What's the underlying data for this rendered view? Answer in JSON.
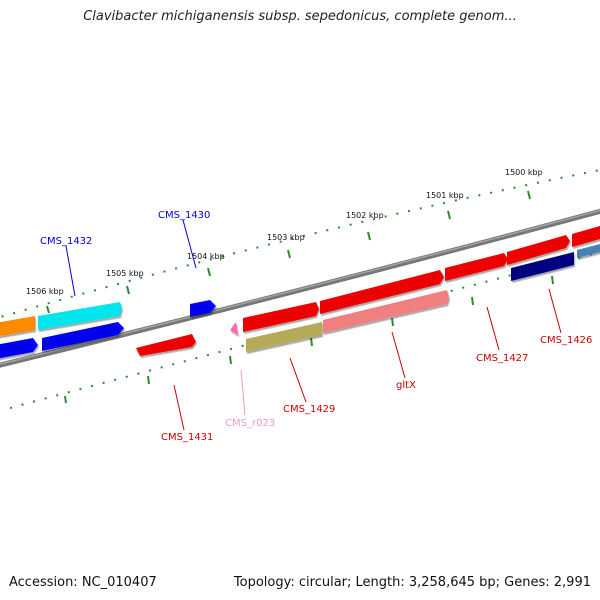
{
  "title": "Clavibacter michiganensis subsp. sepedonicus, complete genom...",
  "footer": {
    "accession": "Accession: NC_010407",
    "summary": "Topology: circular; Length: 3,258,645 bp; Genes: 2,991"
  },
  "colors": {
    "backbone": "#7a7a7a",
    "ticks": "#2e8b2e",
    "label_blue": "#0000cc",
    "label_red": "#cc0000",
    "label_pink": "#e79bd2"
  },
  "scale_labels": [
    "1506 kbp",
    "1505 kbp",
    "1504 kbp",
    "1503 kbp",
    "1502 kbp",
    "1501 kbp",
    "1500 kbp"
  ],
  "features": [
    {
      "id": "f1",
      "color": "#ff8c00",
      "strand": "+"
    },
    {
      "id": "f2",
      "color": "#00e5ee",
      "strand": "+"
    },
    {
      "id": "f3",
      "color": "#0000ee",
      "strand": "+"
    },
    {
      "id": "f4",
      "color": "#ee0000",
      "strand": "+"
    },
    {
      "id": "f5",
      "color": "#ee0000",
      "strand": "+"
    },
    {
      "id": "f6",
      "color": "#ee0000",
      "strand": "+"
    },
    {
      "id": "f7",
      "color": "#ee0000",
      "strand": "+"
    },
    {
      "id": "f8",
      "color": "#ee0000",
      "strand": "+"
    },
    {
      "id": "f9",
      "color": "#4682b4",
      "strand": "+"
    },
    {
      "id": "f10",
      "color": "#0000ee",
      "strand": "-"
    },
    {
      "id": "f11",
      "color": "#0000ee",
      "strand": "-"
    },
    {
      "id": "f12",
      "color": "#ee0000",
      "strand": "-"
    },
    {
      "id": "f13",
      "color": "#ff69b4",
      "strand": "-"
    },
    {
      "id": "f14",
      "color": "#b5aa59",
      "strand": "-"
    },
    {
      "id": "f15",
      "color": "#f08080",
      "strand": "-"
    },
    {
      "id": "f16",
      "color": "#000080",
      "strand": "-"
    }
  ],
  "gene_labels": [
    {
      "text": "CMS_1432",
      "color": "#0000cc"
    },
    {
      "text": "CMS_1430",
      "color": "#0000cc"
    },
    {
      "text": "CMS_1431",
      "color": "#cc0000"
    },
    {
      "text": "CMS_r023",
      "color": "#e79bd2"
    },
    {
      "text": "CMS_1429",
      "color": "#cc0000"
    },
    {
      "text": "gltX",
      "color": "#cc0000"
    },
    {
      "text": "CMS_1427",
      "color": "#cc0000"
    },
    {
      "text": "CMS_1426",
      "color": "#cc0000"
    }
  ]
}
